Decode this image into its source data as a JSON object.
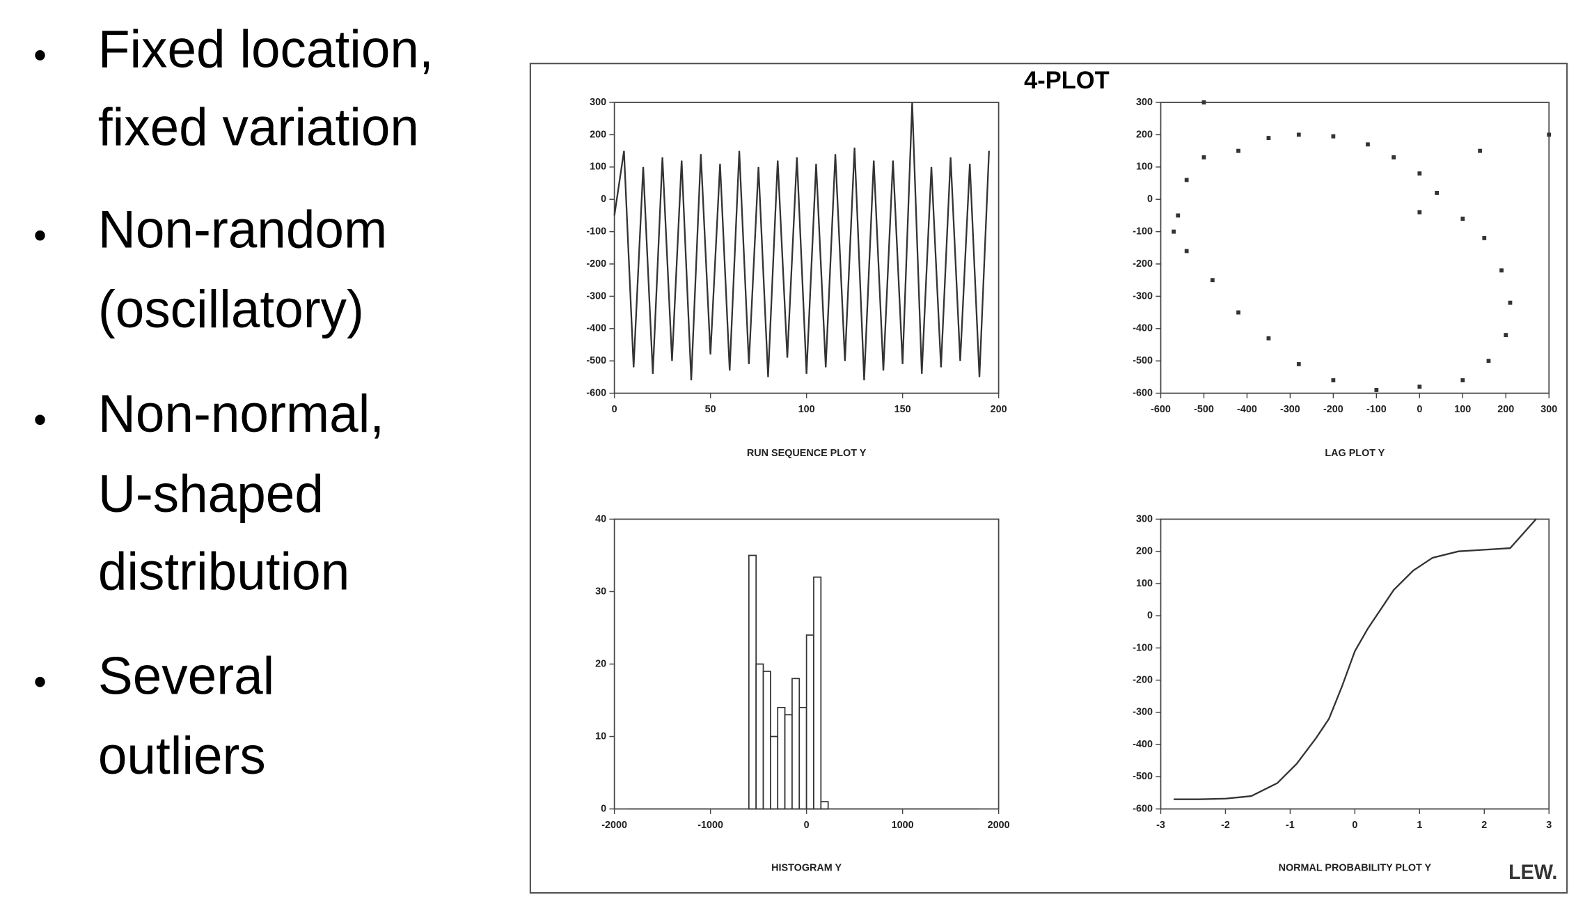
{
  "bullets": [
    [
      "Fixed location,",
      "fixed variation"
    ],
    [
      "Non-random",
      "(oscillatory)"
    ],
    [
      "Non-normal,",
      "U-shaped",
      "distribution"
    ],
    [
      "Several",
      "outliers"
    ]
  ],
  "title": "4-PLOT",
  "footer": "LEW.",
  "chart_data": [
    {
      "type": "line",
      "xlabel": "RUN SEQUENCE PLOT Y",
      "color": "#333333",
      "x": [
        0,
        5,
        10,
        15,
        20,
        25,
        30,
        35,
        40,
        45,
        50,
        55,
        60,
        65,
        70,
        75,
        80,
        85,
        90,
        95,
        100,
        105,
        110,
        115,
        120,
        125,
        130,
        135,
        140,
        145,
        150,
        155,
        160,
        165,
        170,
        175,
        180,
        185,
        190,
        195
      ],
      "y": [
        -50,
        150,
        -520,
        100,
        -540,
        130,
        -500,
        120,
        -560,
        140,
        -480,
        110,
        -530,
        150,
        -510,
        100,
        -550,
        120,
        -490,
        130,
        -540,
        110,
        -520,
        140,
        -500,
        160,
        -560,
        120,
        -530,
        120,
        -510,
        300,
        -540,
        100,
        -520,
        130,
        -500,
        110,
        -550,
        150
      ],
      "xlim": [
        0,
        200
      ],
      "xticks": [
        0,
        50,
        100,
        150,
        200
      ],
      "ylim": [
        -600,
        300
      ],
      "yticks": [
        -600,
        -500,
        -400,
        -300,
        -200,
        -100,
        0,
        100,
        200,
        300
      ]
    },
    {
      "type": "scatter",
      "xlabel": "LAG PLOT Y",
      "color": "#333333",
      "x": [
        -560,
        -540,
        -500,
        -420,
        -350,
        -280,
        -200,
        -120,
        -60,
        0,
        40,
        100,
        150,
        190,
        210,
        200,
        160,
        100,
        0,
        -100,
        -200,
        -280,
        -350,
        -420,
        -480,
        -540,
        -570,
        -500,
        140,
        0,
        300
      ],
      "y": [
        -50,
        60,
        130,
        150,
        190,
        200,
        195,
        170,
        130,
        80,
        20,
        -60,
        -120,
        -220,
        -320,
        -420,
        -500,
        -560,
        -580,
        -590,
        -560,
        -510,
        -430,
        -350,
        -250,
        -160,
        -100,
        300,
        150,
        -40,
        200
      ],
      "xlim": [
        -600,
        300
      ],
      "xticks": [
        -600,
        -500,
        -400,
        -300,
        -200,
        -100,
        0,
        100,
        200,
        300
      ],
      "ylim": [
        -600,
        300
      ],
      "yticks": [
        -600,
        -500,
        -400,
        -300,
        -200,
        -100,
        0,
        100,
        200,
        300
      ]
    },
    {
      "type": "histogram",
      "xlabel": "HISTOGRAM Y",
      "color": "#ffffff",
      "bins": [
        -600,
        -525,
        -450,
        -375,
        -300,
        -225,
        -150,
        -75,
        0,
        75,
        150,
        225
      ],
      "counts": [
        35,
        20,
        19,
        10,
        14,
        13,
        18,
        14,
        24,
        32,
        1
      ],
      "xlim": [
        -2000,
        2000
      ],
      "xticks": [
        -2000,
        -1000,
        0,
        1000,
        2000
      ],
      "ylim": [
        0,
        40
      ],
      "yticks": [
        0,
        10,
        20,
        30,
        40
      ]
    },
    {
      "type": "line",
      "xlabel": "NORMAL PROBABILITY PLOT Y",
      "color": "#333333",
      "x": [
        -2.8,
        -2.4,
        -2,
        -1.6,
        -1.2,
        -0.9,
        -0.6,
        -0.4,
        -0.2,
        0,
        0.2,
        0.4,
        0.6,
        0.9,
        1.2,
        1.6,
        2,
        2.4,
        2.8
      ],
      "y": [
        -570,
        -570,
        -568,
        -560,
        -520,
        -460,
        -380,
        -320,
        -220,
        -110,
        -40,
        20,
        80,
        140,
        180,
        200,
        205,
        210,
        300
      ],
      "xlim": [
        -3,
        3
      ],
      "xticks": [
        -3,
        -2,
        -1,
        0,
        1,
        2,
        3
      ],
      "ylim": [
        -600,
        300
      ],
      "yticks": [
        -600,
        -500,
        -400,
        -300,
        -200,
        -100,
        0,
        100,
        200,
        300
      ]
    }
  ]
}
